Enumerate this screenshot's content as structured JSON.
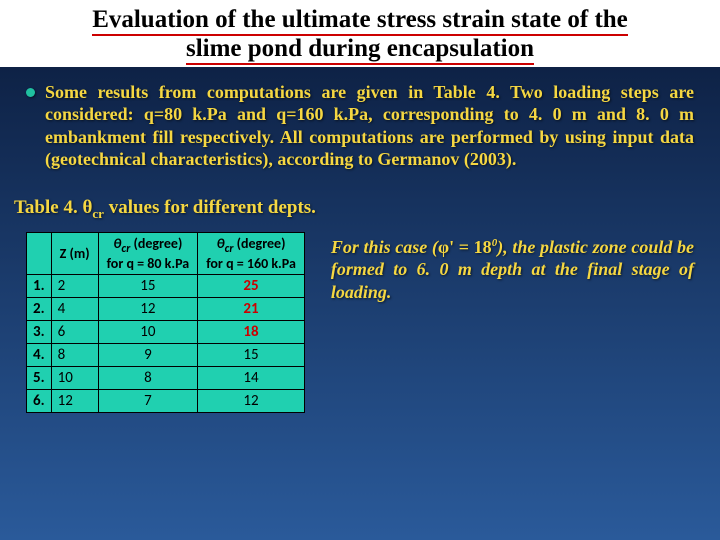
{
  "title": {
    "line1": "Evaluation of the ultimate stress strain state of the",
    "line2": "slime pond during encapsulation"
  },
  "bullet": "Some results from computations are given in Table 4. Two loading steps are considered: q=80 k.Pa and q=160 k.Pa, corresponding to 4. 0 m and 8. 0 m embankment fill respectively. All computations are performed by using input data (geotechnical characteristics), according to Germanov (2003).",
  "caption_prefix": "Table 4. ",
  "caption_symbol": "θ",
  "caption_sub": "cr",
  "caption_suffix": " values for different depts.",
  "table": {
    "headers": {
      "rownum": "",
      "z": "Z (m)",
      "q80_line1": "θcr (degree)",
      "q80_line2": "for q = 80 k.Pa",
      "q160_line1": "θcr (degree)",
      "q160_line2": "for q = 160 k.Pa"
    },
    "rows": [
      {
        "n": "1.",
        "z": "2",
        "q80": "15",
        "q160": "25",
        "red": true
      },
      {
        "n": "2.",
        "z": "4",
        "q80": "12",
        "q160": "21",
        "red": true
      },
      {
        "n": "3.",
        "z": "6",
        "q80": "10",
        "q160": "18",
        "red": true
      },
      {
        "n": "4.",
        "z": "8",
        "q80": "9",
        "q160": "15",
        "red": false
      },
      {
        "n": "5.",
        "z": "10",
        "q80": "8",
        "q160": "14",
        "red": false
      },
      {
        "n": "6.",
        "z": "12",
        "q80": "7",
        "q160": "12",
        "red": false
      }
    ]
  },
  "note_pre": "For this case (",
  "note_phi": "φ' = 18",
  "note_sup": "0",
  "note_post1": "), ",
  "note_post2": "the plastic zone could be formed to 6. 0 m depth at the final stage of loading",
  "note_end": ".",
  "colors": {
    "bg_top": "#0a1a3a",
    "bg_bottom": "#2a5a9a",
    "title_bg": "#ffffff",
    "title_underline": "#cc0000",
    "text_yellow": "#f5d742",
    "table_bg": "#20d0b0",
    "table_red": "#cc0000",
    "bullet_dot": "#20c0a0"
  }
}
